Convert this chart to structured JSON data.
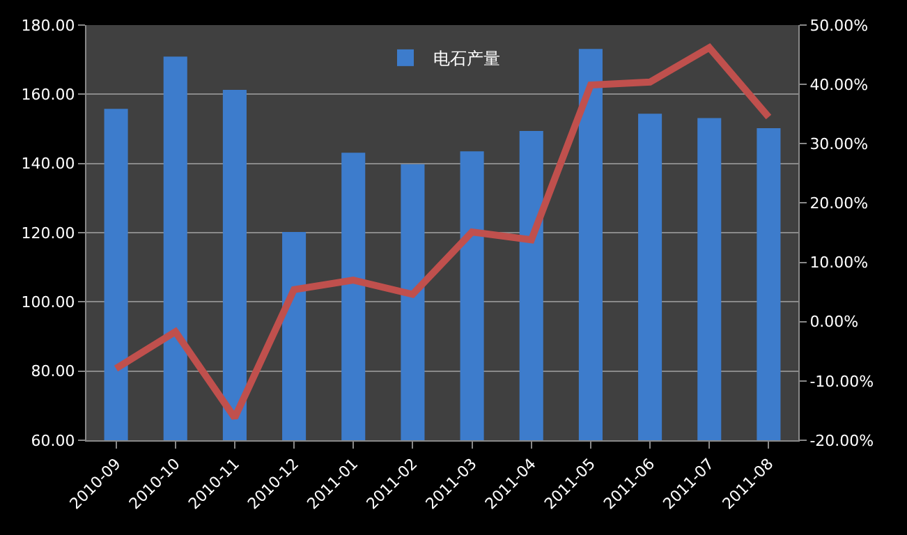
{
  "chart_data": {
    "type": "bar",
    "categories": [
      "2010-09",
      "2010-10",
      "2010-11",
      "2010-12",
      "2011-01",
      "2011-02",
      "2011-03",
      "2011-04",
      "2011-05",
      "2011-06",
      "2011-07",
      "2011-08"
    ],
    "series": [
      {
        "name": "电石产量",
        "color": "#3d7ccc",
        "values": [
          155.8,
          170.9,
          161.3,
          120.2,
          143.1,
          139.8,
          143.5,
          149.4,
          173.1,
          154.4,
          153.1,
          150.2
        ]
      },
      {
        "type": "line",
        "axis": "y2",
        "color": "#c0504d",
        "values": [
          -7.9,
          -1.7,
          -16.2,
          5.4,
          7.0,
          4.6,
          15.1,
          13.8,
          39.9,
          40.4,
          46.2,
          34.5
        ]
      }
    ],
    "ylim": [
      60,
      180
    ],
    "yticks": [
      {
        "value": 60,
        "label": "60.00"
      },
      {
        "value": 80,
        "label": "80.00"
      },
      {
        "value": 100,
        "label": "100.00"
      },
      {
        "value": 120,
        "label": "120.00"
      },
      {
        "value": 140,
        "label": "140.00"
      },
      {
        "value": 160,
        "label": "160.00"
      },
      {
        "value": 180,
        "label": "180.00"
      }
    ],
    "y2lim": [
      -20,
      50
    ],
    "y2ticks": [
      {
        "value": -20,
        "label": "-20.00%"
      },
      {
        "value": -10,
        "label": "-10.00%"
      },
      {
        "value": 0,
        "label": "0.00%"
      },
      {
        "value": 10,
        "label": "10.00%"
      },
      {
        "value": 20,
        "label": "20.00%"
      },
      {
        "value": 30,
        "label": "30.00%"
      },
      {
        "value": 40,
        "label": "40.00%"
      },
      {
        "value": 50,
        "label": "50.00%"
      }
    ],
    "grid": "y",
    "legend": "top",
    "marker": "none",
    "line_style": "solid"
  }
}
